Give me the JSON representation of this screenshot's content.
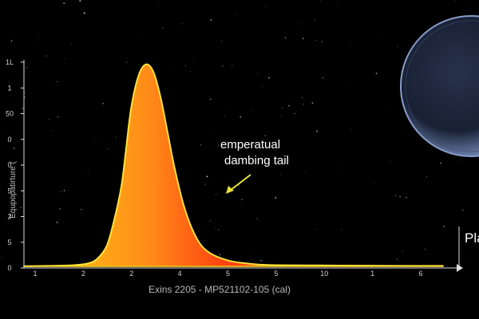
{
  "colors": {
    "background": "#000000",
    "axis": "#dddddd",
    "peak_core": "#ff3a10",
    "peak_edge": "#ffc21a",
    "baseline": "#ffd21a",
    "arrow": "#e8e23a",
    "planet": "#5a6f96"
  },
  "chart_data": {
    "type": "area",
    "title": "",
    "xlabel": "Exins 2205 - MP521102-105 (cal)",
    "ylabel": "Equpopatirture (",
    "x_tick_labels": [
      "1",
      "2",
      "2",
      "4",
      "5",
      "5",
      "10",
      "1",
      "6"
    ],
    "y_tick_labels": [
      "0",
      "5",
      "2",
      "5",
      "0",
      "0",
      "50",
      "1",
      "1L"
    ],
    "x": [
      0,
      0.5,
      1.0,
      1.3,
      1.5,
      1.7,
      1.85,
      2.0,
      2.1,
      2.2,
      2.35,
      2.5,
      2.65,
      2.8,
      2.95,
      3.1,
      3.3,
      3.55,
      3.8,
      4.2,
      4.6,
      5,
      6,
      7,
      8,
      8.6
    ],
    "y": [
      0.01,
      0.02,
      0.05,
      0.12,
      0.32,
      0.9,
      2.0,
      3.5,
      5.2,
      6.9,
      8.3,
      8.8,
      8.5,
      7.4,
      5.8,
      4.2,
      2.5,
      1.2,
      0.6,
      0.25,
      0.12,
      0.06,
      0.04,
      0.03,
      0.02,
      0.02
    ],
    "xlim": [
      0,
      8.6
    ],
    "ylim": [
      0,
      9
    ],
    "grid": false,
    "annotation": {
      "line1": "emperatual",
      "line2": "dambing tail"
    },
    "edge_label": "Pla"
  }
}
